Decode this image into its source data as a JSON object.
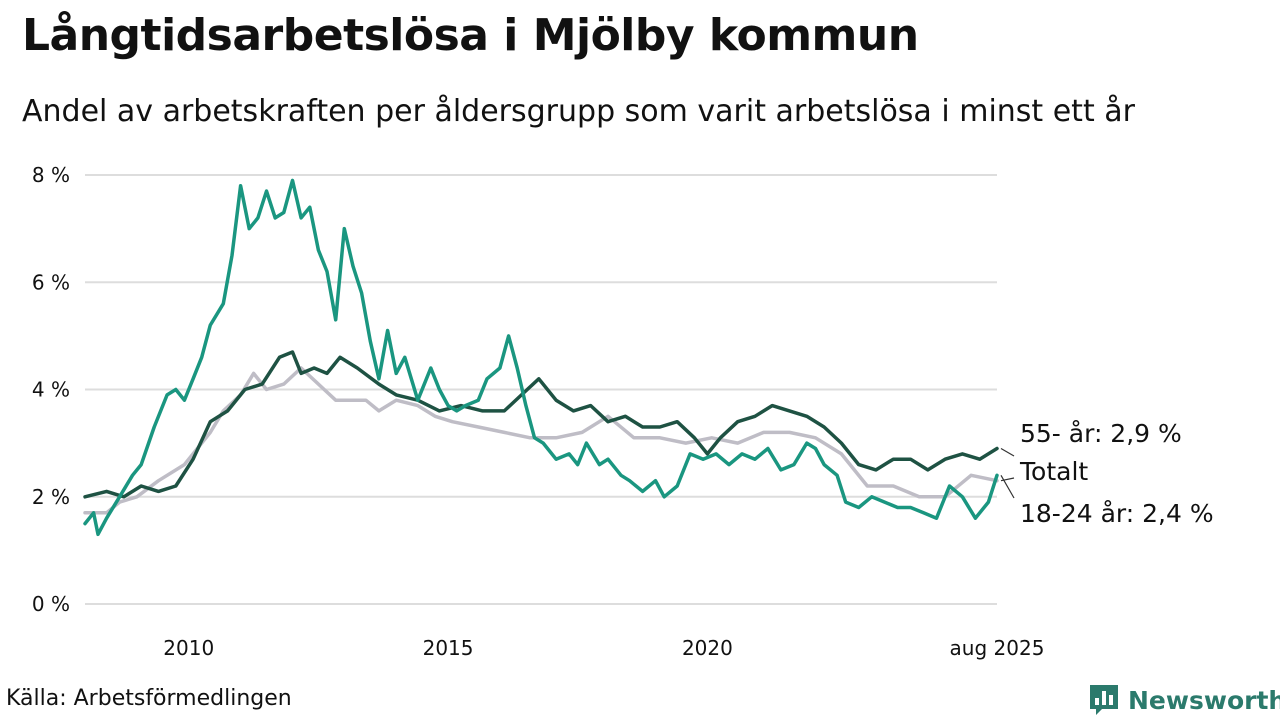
{
  "title": "Långtidsarbetslösa i Mjölby kommun",
  "subtitle": "Andel av arbetskraften per åldersgrupp som varit arbetslösa i minst ett år",
  "source": "Källa: Arbetsförmedlingen",
  "brand": {
    "name": "Newsworthy",
    "icon": "newsworthy-logo-icon",
    "color": "#2b7a6c"
  },
  "chart_data": {
    "type": "line",
    "title": "Långtidsarbetslösa i Mjölby kommun",
    "subtitle": "Andel av arbetskraften per åldersgrupp som varit arbetslösa i minst ett år",
    "xlabel": "",
    "ylabel": "",
    "xlim": [
      "2008-01",
      "2025-08"
    ],
    "ylim": [
      0,
      8
    ],
    "grid": true,
    "legend": "direct labels at line ends",
    "x_ticks": [
      {
        "value": "2010-01",
        "label": "2010"
      },
      {
        "value": "2015-01",
        "label": "2015"
      },
      {
        "value": "2020-01",
        "label": "2020"
      },
      {
        "value": "2025-08",
        "label": "aug 2025"
      }
    ],
    "y_ticks": [
      {
        "value": 0,
        "label": "0 %"
      },
      {
        "value": 2,
        "label": "2 %"
      },
      {
        "value": 4,
        "label": "4 %"
      },
      {
        "value": 6,
        "label": "6 %"
      },
      {
        "value": 8,
        "label": "8 %"
      }
    ],
    "series": [
      {
        "name": "Totalt",
        "label": "Totalt",
        "color": "#bfbdc6",
        "points": [
          [
            "2008-01",
            1.7
          ],
          [
            "2008-06",
            1.7
          ],
          [
            "2008-09",
            1.9
          ],
          [
            "2009-01",
            2.0
          ],
          [
            "2009-06",
            2.3
          ],
          [
            "2009-12",
            2.6
          ],
          [
            "2010-06",
            3.2
          ],
          [
            "2010-09",
            3.6
          ],
          [
            "2011-01",
            3.9
          ],
          [
            "2011-04",
            4.3
          ],
          [
            "2011-07",
            4.0
          ],
          [
            "2011-11",
            4.1
          ],
          [
            "2012-03",
            4.4
          ],
          [
            "2012-07",
            4.1
          ],
          [
            "2012-11",
            3.8
          ],
          [
            "2013-06",
            3.8
          ],
          [
            "2013-09",
            3.6
          ],
          [
            "2014-01",
            3.8
          ],
          [
            "2014-06",
            3.7
          ],
          [
            "2014-10",
            3.5
          ],
          [
            "2015-02",
            3.4
          ],
          [
            "2015-08",
            3.3
          ],
          [
            "2016-02",
            3.2
          ],
          [
            "2016-08",
            3.1
          ],
          [
            "2017-02",
            3.1
          ],
          [
            "2017-08",
            3.2
          ],
          [
            "2018-02",
            3.5
          ],
          [
            "2018-08",
            3.1
          ],
          [
            "2019-02",
            3.1
          ],
          [
            "2019-08",
            3.0
          ],
          [
            "2020-02",
            3.1
          ],
          [
            "2020-08",
            3.0
          ],
          [
            "2021-02",
            3.2
          ],
          [
            "2021-08",
            3.2
          ],
          [
            "2022-02",
            3.1
          ],
          [
            "2022-08",
            2.8
          ],
          [
            "2023-02",
            2.2
          ],
          [
            "2023-08",
            2.2
          ],
          [
            "2024-02",
            2.0
          ],
          [
            "2024-08",
            2.0
          ],
          [
            "2025-02",
            2.4
          ],
          [
            "2025-08",
            2.3
          ]
        ]
      },
      {
        "name": "55- år",
        "label": "55- år: 2,9 %",
        "color": "#1e5243",
        "points": [
          [
            "2008-01",
            2.0
          ],
          [
            "2008-06",
            2.1
          ],
          [
            "2008-10",
            2.0
          ],
          [
            "2009-02",
            2.2
          ],
          [
            "2009-06",
            2.1
          ],
          [
            "2009-10",
            2.2
          ],
          [
            "2010-02",
            2.7
          ],
          [
            "2010-06",
            3.4
          ],
          [
            "2010-10",
            3.6
          ],
          [
            "2011-02",
            4.0
          ],
          [
            "2011-06",
            4.1
          ],
          [
            "2011-10",
            4.6
          ],
          [
            "2012-01",
            4.7
          ],
          [
            "2012-03",
            4.3
          ],
          [
            "2012-06",
            4.4
          ],
          [
            "2012-09",
            4.3
          ],
          [
            "2012-12",
            4.6
          ],
          [
            "2013-04",
            4.4
          ],
          [
            "2013-09",
            4.1
          ],
          [
            "2014-01",
            3.9
          ],
          [
            "2014-06",
            3.8
          ],
          [
            "2014-11",
            3.6
          ],
          [
            "2015-04",
            3.7
          ],
          [
            "2015-09",
            3.6
          ],
          [
            "2016-02",
            3.6
          ],
          [
            "2016-06",
            3.9
          ],
          [
            "2016-10",
            4.2
          ],
          [
            "2017-02",
            3.8
          ],
          [
            "2017-06",
            3.6
          ],
          [
            "2017-10",
            3.7
          ],
          [
            "2018-02",
            3.4
          ],
          [
            "2018-06",
            3.5
          ],
          [
            "2018-10",
            3.3
          ],
          [
            "2019-02",
            3.3
          ],
          [
            "2019-06",
            3.4
          ],
          [
            "2019-10",
            3.1
          ],
          [
            "2020-01",
            2.8
          ],
          [
            "2020-04",
            3.1
          ],
          [
            "2020-08",
            3.4
          ],
          [
            "2020-12",
            3.5
          ],
          [
            "2021-04",
            3.7
          ],
          [
            "2021-08",
            3.6
          ],
          [
            "2021-12",
            3.5
          ],
          [
            "2022-04",
            3.3
          ],
          [
            "2022-08",
            3.0
          ],
          [
            "2022-12",
            2.6
          ],
          [
            "2023-04",
            2.5
          ],
          [
            "2023-08",
            2.7
          ],
          [
            "2023-12",
            2.7
          ],
          [
            "2024-04",
            2.5
          ],
          [
            "2024-08",
            2.7
          ],
          [
            "2024-12",
            2.8
          ],
          [
            "2025-04",
            2.7
          ],
          [
            "2025-08",
            2.9
          ]
        ]
      },
      {
        "name": "18-24 år",
        "label": "18-24 år: 2,4 %",
        "color": "#1a9680",
        "points": [
          [
            "2008-01",
            1.5
          ],
          [
            "2008-03",
            1.7
          ],
          [
            "2008-04",
            1.3
          ],
          [
            "2008-06",
            1.6
          ],
          [
            "2008-09",
            2.0
          ],
          [
            "2008-12",
            2.4
          ],
          [
            "2009-02",
            2.6
          ],
          [
            "2009-05",
            3.3
          ],
          [
            "2009-08",
            3.9
          ],
          [
            "2009-10",
            4.0
          ],
          [
            "2009-12",
            3.8
          ],
          [
            "2010-02",
            4.2
          ],
          [
            "2010-04",
            4.6
          ],
          [
            "2010-06",
            5.2
          ],
          [
            "2010-09",
            5.6
          ],
          [
            "2010-11",
            6.5
          ],
          [
            "2011-01",
            7.8
          ],
          [
            "2011-03",
            7.0
          ],
          [
            "2011-05",
            7.2
          ],
          [
            "2011-07",
            7.7
          ],
          [
            "2011-09",
            7.2
          ],
          [
            "2011-11",
            7.3
          ],
          [
            "2012-01",
            7.9
          ],
          [
            "2012-03",
            7.2
          ],
          [
            "2012-05",
            7.4
          ],
          [
            "2012-07",
            6.6
          ],
          [
            "2012-09",
            6.2
          ],
          [
            "2012-11",
            5.3
          ],
          [
            "2013-01",
            7.0
          ],
          [
            "2013-03",
            6.3
          ],
          [
            "2013-05",
            5.8
          ],
          [
            "2013-07",
            4.9
          ],
          [
            "2013-09",
            4.2
          ],
          [
            "2013-11",
            5.1
          ],
          [
            "2014-01",
            4.3
          ],
          [
            "2014-03",
            4.6
          ],
          [
            "2014-06",
            3.8
          ],
          [
            "2014-09",
            4.4
          ],
          [
            "2014-11",
            4.0
          ],
          [
            "2015-01",
            3.7
          ],
          [
            "2015-03",
            3.6
          ],
          [
            "2015-05",
            3.7
          ],
          [
            "2015-08",
            3.8
          ],
          [
            "2015-10",
            4.2
          ],
          [
            "2016-01",
            4.4
          ],
          [
            "2016-03",
            5.0
          ],
          [
            "2016-05",
            4.4
          ],
          [
            "2016-07",
            3.7
          ],
          [
            "2016-09",
            3.1
          ],
          [
            "2016-11",
            3.0
          ],
          [
            "2017-02",
            2.7
          ],
          [
            "2017-05",
            2.8
          ],
          [
            "2017-07",
            2.6
          ],
          [
            "2017-09",
            3.0
          ],
          [
            "2017-12",
            2.6
          ],
          [
            "2018-02",
            2.7
          ],
          [
            "2018-05",
            2.4
          ],
          [
            "2018-07",
            2.3
          ],
          [
            "2018-10",
            2.1
          ],
          [
            "2019-01",
            2.3
          ],
          [
            "2019-03",
            2.0
          ],
          [
            "2019-06",
            2.2
          ],
          [
            "2019-09",
            2.8
          ],
          [
            "2019-12",
            2.7
          ],
          [
            "2020-03",
            2.8
          ],
          [
            "2020-06",
            2.6
          ],
          [
            "2020-09",
            2.8
          ],
          [
            "2020-12",
            2.7
          ],
          [
            "2021-03",
            2.9
          ],
          [
            "2021-06",
            2.5
          ],
          [
            "2021-09",
            2.6
          ],
          [
            "2021-12",
            3.0
          ],
          [
            "2022-02",
            2.9
          ],
          [
            "2022-04",
            2.6
          ],
          [
            "2022-07",
            2.4
          ],
          [
            "2022-09",
            1.9
          ],
          [
            "2022-12",
            1.8
          ],
          [
            "2023-03",
            2.0
          ],
          [
            "2023-06",
            1.9
          ],
          [
            "2023-09",
            1.8
          ],
          [
            "2023-12",
            1.8
          ],
          [
            "2024-03",
            1.7
          ],
          [
            "2024-06",
            1.6
          ],
          [
            "2024-09",
            2.2
          ],
          [
            "2024-12",
            2.0
          ],
          [
            "2025-03",
            1.6
          ],
          [
            "2025-06",
            1.9
          ],
          [
            "2025-08",
            2.4
          ]
        ]
      }
    ]
  }
}
